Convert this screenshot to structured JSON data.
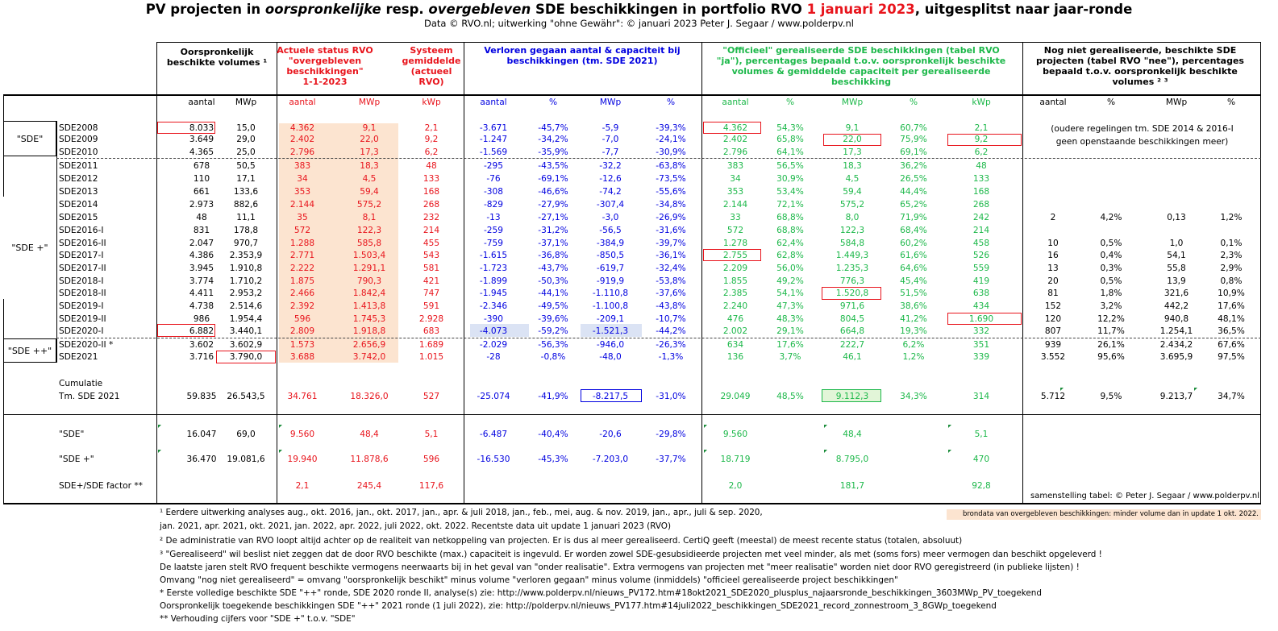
{
  "title": {
    "p1": "PV projecten in ",
    "p2": "oorspronkelijke",
    "p3": " resp. ",
    "p4": "overgebleven",
    "p5": " SDE beschikkingen in portfolio RVO ",
    "p6": "1 januari 2023",
    "p7": ", uitgesplitst naar jaar-ronde"
  },
  "subtitle": "Data © RVO.nl; uitwerking \"ohne Gewähr\": © januari 2023 Peter J. Segaar / www.polderpv.nl",
  "headers": {
    "orig": "Oorspronkelijk\nbeschikte volumes ¹",
    "actueel": "Actuele status RVO\n\"overgebleven\nbeschikkingen\"\n1-1-2023",
    "systeem": "Systeem\ngemiddelde\n(actueel\nRVO)",
    "verloren": "Verloren gegaan aantal & capaciteit bij\nbeschikkingen (tm. SDE 2021)",
    "officieel": "\"Officieel\" gerealiseerde SDE beschikkingen (tabel RVO\n\"ja\"), percentages bepaald t.o.v. oorspronkelijk beschikte\nvolumes & gemiddelde capaciteit per gerealiseerde\nbeschikking",
    "nog": "Nog niet gerealiseerde, beschikte SDE\nprojecten (tabel RVO \"nee\"), percentages\nbepaald t.o.v. oorspronkelijk beschikte\nvolumes ² ³"
  },
  "subheaders": [
    "aantal",
    "MWp",
    "aantal",
    "MWp",
    "kWp",
    "aantal",
    "%",
    "MWp",
    "%",
    "aantal",
    "%",
    "MWp",
    "%",
    "kWp",
    "aantal",
    "%",
    "MWp",
    "%"
  ],
  "groups": {
    "sde": "\"SDE\"",
    "sdeplus": "\"SDE +\"",
    "sdeplusplus": "\"SDE ++\""
  },
  "old_note": "(oudere regelingen tm. SDE 2014 & 2016-I\ngeen openstaande beschikkingen meer)",
  "rows": [
    [
      "SDE2008",
      "8.033",
      "15,0",
      "4.362",
      "9,1",
      "2,1",
      "-3.671",
      "-45,7%",
      "-5,9",
      "-39,3%",
      "4.362",
      "54,3%",
      "9,1",
      "60,7%",
      "2,1",
      "",
      "",
      "",
      ""
    ],
    [
      "SDE2009",
      "3.649",
      "29,0",
      "2.402",
      "22,0",
      "9,2",
      "-1.247",
      "-34,2%",
      "-7,0",
      "-24,1%",
      "2.402",
      "65,8%",
      "22,0",
      "75,9%",
      "9,2",
      "",
      "",
      "",
      ""
    ],
    [
      "SDE2010",
      "4.365",
      "25,0",
      "2.796",
      "17,3",
      "6,2",
      "-1.569",
      "-35,9%",
      "-7,7",
      "-30,9%",
      "2.796",
      "64,1%",
      "17,3",
      "69,1%",
      "6,2",
      "",
      "",
      "",
      ""
    ],
    [
      "SDE2011",
      "678",
      "50,5",
      "383",
      "18,3",
      "48",
      "-295",
      "-43,5%",
      "-32,2",
      "-63,8%",
      "383",
      "56,5%",
      "18,3",
      "36,2%",
      "48",
      "",
      "",
      "",
      ""
    ],
    [
      "SDE2012",
      "110",
      "17,1",
      "34",
      "4,5",
      "133",
      "-76",
      "-69,1%",
      "-12,6",
      "-73,5%",
      "34",
      "30,9%",
      "4,5",
      "26,5%",
      "133",
      "",
      "",
      "",
      ""
    ],
    [
      "SDE2013",
      "661",
      "133,6",
      "353",
      "59,4",
      "168",
      "-308",
      "-46,6%",
      "-74,2",
      "-55,6%",
      "353",
      "53,4%",
      "59,4",
      "44,4%",
      "168",
      "",
      "",
      "",
      ""
    ],
    [
      "SDE2014",
      "2.973",
      "882,6",
      "2.144",
      "575,2",
      "268",
      "-829",
      "-27,9%",
      "-307,4",
      "-34,8%",
      "2.144",
      "72,1%",
      "575,2",
      "65,2%",
      "268",
      "",
      "",
      "",
      ""
    ],
    [
      "SDE2015",
      "48",
      "11,1",
      "35",
      "8,1",
      "232",
      "-13",
      "-27,1%",
      "-3,0",
      "-26,9%",
      "33",
      "68,8%",
      "8,0",
      "71,9%",
      "242",
      "2",
      "4,2%",
      "0,13",
      "1,2%"
    ],
    [
      "SDE2016-I",
      "831",
      "178,8",
      "572",
      "122,3",
      "214",
      "-259",
      "-31,2%",
      "-56,5",
      "-31,6%",
      "572",
      "68,8%",
      "122,3",
      "68,4%",
      "214",
      "",
      "",
      "",
      ""
    ],
    [
      "SDE2016-II",
      "2.047",
      "970,7",
      "1.288",
      "585,8",
      "455",
      "-759",
      "-37,1%",
      "-384,9",
      "-39,7%",
      "1.278",
      "62,4%",
      "584,8",
      "60,2%",
      "458",
      "10",
      "0,5%",
      "1,0",
      "0,1%"
    ],
    [
      "SDE2017-I",
      "4.386",
      "2.353,9",
      "2.771",
      "1.503,4",
      "543",
      "-1.615",
      "-36,8%",
      "-850,5",
      "-36,1%",
      "2.755",
      "62,8%",
      "1.449,3",
      "61,6%",
      "526",
      "16",
      "0,4%",
      "54,1",
      "2,3%"
    ],
    [
      "SDE2017-II",
      "3.945",
      "1.910,8",
      "2.222",
      "1.291,1",
      "581",
      "-1.723",
      "-43,7%",
      "-619,7",
      "-32,4%",
      "2.209",
      "56,0%",
      "1.235,3",
      "64,6%",
      "559",
      "13",
      "0,3%",
      "55,8",
      "2,9%"
    ],
    [
      "SDE2018-I",
      "3.774",
      "1.710,2",
      "1.875",
      "790,3",
      "421",
      "-1.899",
      "-50,3%",
      "-919,9",
      "-53,8%",
      "1.855",
      "49,2%",
      "776,3",
      "45,4%",
      "419",
      "20",
      "0,5%",
      "13,9",
      "0,8%"
    ],
    [
      "SDE2018-II",
      "4.411",
      "2.953,2",
      "2.466",
      "1.842,4",
      "747",
      "-1.945",
      "-44,1%",
      "-1.110,8",
      "-37,6%",
      "2.385",
      "54,1%",
      "1.520,8",
      "51,5%",
      "638",
      "81",
      "1,8%",
      "321,6",
      "10,9%"
    ],
    [
      "SDE2019-I",
      "4.738",
      "2.514,6",
      "2.392",
      "1.413,8",
      "591",
      "-2.346",
      "-49,5%",
      "-1.100,8",
      "-43,8%",
      "2.240",
      "47,3%",
      "971,6",
      "38,6%",
      "434",
      "152",
      "3,2%",
      "442,2",
      "17,6%"
    ],
    [
      "SDE2019-II",
      "986",
      "1.954,4",
      "596",
      "1.745,3",
      "2.928",
      "-390",
      "-39,6%",
      "-209,1",
      "-10,7%",
      "476",
      "48,3%",
      "804,5",
      "41,2%",
      "1.690",
      "120",
      "12,2%",
      "940,8",
      "48,1%"
    ],
    [
      "SDE2020-I",
      "6.882",
      "3.440,1",
      "2.809",
      "1.918,8",
      "683",
      "-4.073",
      "-59,2%",
      "-1.521,3",
      "-44,2%",
      "2.002",
      "29,1%",
      "664,8",
      "19,3%",
      "332",
      "807",
      "11,7%",
      "1.254,1",
      "36,5%"
    ],
    [
      "SDE2020-II *",
      "3.602",
      "3.602,9",
      "1.573",
      "2.656,9",
      "1.689",
      "-2.029",
      "-56,3%",
      "-946,0",
      "-26,3%",
      "634",
      "17,6%",
      "222,7",
      "6,2%",
      "351",
      "939",
      "26,1%",
      "2.434,2",
      "67,6%"
    ],
    [
      "SDE2021",
      "3.716",
      "3.790,0",
      "3.688",
      "3.742,0",
      "1.015",
      "-28",
      "-0,8%",
      "-48,0",
      "-1,3%",
      "136",
      "3,7%",
      "46,1",
      "1,2%",
      "339",
      "3.552",
      "95,6%",
      "3.695,9",
      "97,5%"
    ]
  ],
  "cumulatie": {
    "label1": "Cumulatie",
    "label2": "Tm. SDE 2021",
    "values": [
      "59.835",
      "26.543,5",
      "34.761",
      "18.326,0",
      "527",
      "-25.074",
      "-41,9%",
      "-8.217,5",
      "-31,0%",
      "29.049",
      "48,5%",
      "9.112,3",
      "34,3%",
      "314",
      "5.712",
      "9,5%",
      "9.213,7",
      "34,7%"
    ]
  },
  "summary": [
    {
      "label": "\"SDE\"",
      "values": [
        "16.047",
        "69,0",
        "9.560",
        "48,4",
        "5,1",
        "-6.487",
        "-40,4%",
        "-20,6",
        "-29,8%",
        "9.560",
        "",
        "48,4",
        "",
        "5,1",
        "",
        "",
        "",
        ""
      ]
    },
    {
      "label": "\"SDE +\"",
      "values": [
        "36.470",
        "19.081,6",
        "19.940",
        "11.878,6",
        "596",
        "-16.530",
        "-45,3%",
        "-7.203,0",
        "-37,7%",
        "18.719",
        "",
        "8.795,0",
        "",
        "470",
        "",
        "",
        "",
        ""
      ]
    },
    {
      "label": "SDE+/SDE factor **",
      "values": [
        "",
        "",
        "2,1",
        "245,4",
        "117,6",
        "",
        "",
        "",
        "",
        "2,0",
        "",
        "181,7",
        "",
        "92,8",
        "",
        "",
        "",
        ""
      ]
    }
  ],
  "credit": "samenstelling tabel: © Peter J. Segaar / www.polderpv.nl",
  "legend": "brondata van overgebleven beschikkingen: minder volume dan in update 1 okt. 2022.",
  "notes": [
    "¹ Eerdere uitwerking analyses aug., okt. 2016, jan., okt.  2017, jan., apr. & juli 2018, jan., feb., mei, aug. & nov. 2019, jan., apr., juli & sep. 2020,",
    "   jan. 2021, apr. 2021, okt. 2021, jan. 2022, apr. 2022, juli 2022, okt. 2022. Recentste data uit update 1 januari 2023 (RVO)",
    "² De administratie van RVO loopt altijd achter op de realiteit van netkoppeling van projecten. Er is dus al meer gerealiseerd. CertiQ geeft (meestal) de meest recente status (totalen, absoluut)",
    "³ \"Gerealiseerd\" wil beslist niet zeggen dat de door RVO beschikte (max.) capaciteit is ingevuld. Er worden zowel SDE-gesubsidieerde projecten met veel minder, als met (soms fors) meer vermogen dan beschikt opgeleverd !",
    "De laatste jaren stelt RVO frequent beschikte vermogens neerwaarts bij in het geval van \"onder realisatie\". Extra vermogens van projecten met \"meer realisatie\" worden niet door RVO geregistreerd (in publieke lijsten) !",
    "Omvang \"nog niet gerealiseerd\" = omvang \"oorspronkelijk beschikt\" minus volume \"verloren gegaan\" minus volume (inmiddels) \"officieel gerealiseerde project beschikkingen\"",
    "* Eerste volledige beschikte SDE \"++\" ronde, SDE 2020 ronde II, analyse(s) zie: http://www.polderpv.nl/nieuws_PV172.htm#18okt2021_SDE2020_plusplus_najaarsronde_beschikkingen_3603MWp_PV_toegekend",
    "Oorspronkelijk toegekende beschikkingen SDE \"++\" 2021 ronde (1 juli 2022), zie: http://polderpv.nl/nieuws_PV177.htm#14juli2022_beschikkingen_SDE2021_record_zonnestroom_3_8GWp_toegekend",
    "** Verhouding cijfers voor \"SDE +\" t.o.v. \"SDE\""
  ],
  "colors": {
    "red": "#e8141c",
    "blue": "#0000e0",
    "green": "#1db84a",
    "shade": "#fce4d0"
  }
}
